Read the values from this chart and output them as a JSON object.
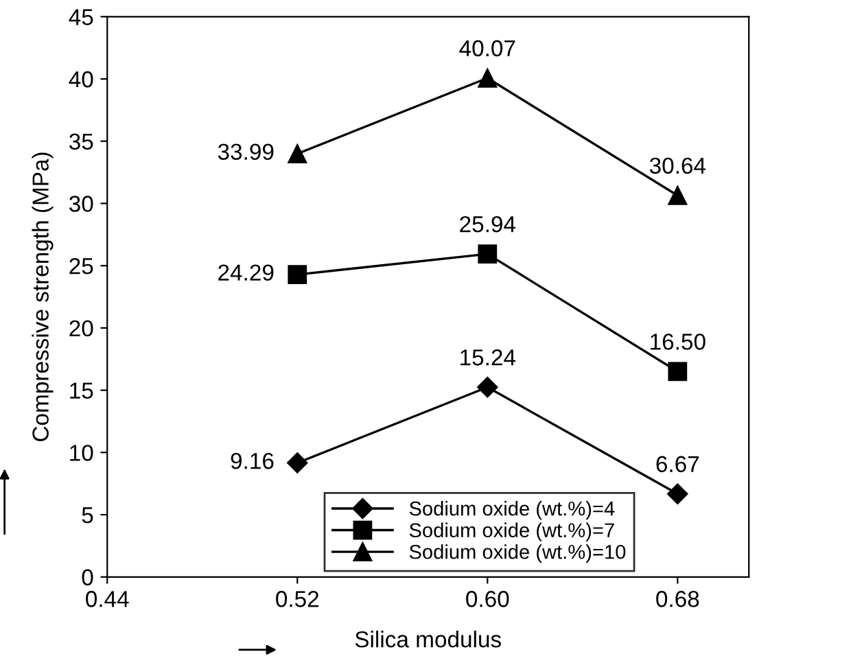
{
  "chart_data": {
    "type": "line",
    "xlabel": "Silica modulus",
    "ylabel": "Compressive strength (MPa)",
    "x": [
      0.52,
      0.6,
      0.68
    ],
    "series": [
      {
        "name": "Sodium oxide (wt.%)=4",
        "color": "#000000",
        "marker": "diamond",
        "values": [
          9.16,
          15.24,
          6.67
        ],
        "value_labels": [
          "9.16",
          "15.24",
          "6.67"
        ]
      },
      {
        "name": "Sodium oxide (wt.%)=7",
        "color": "#000000",
        "marker": "square",
        "values": [
          24.29,
          25.94,
          16.5
        ],
        "value_labels": [
          "24.29",
          "25.94",
          "16.50"
        ]
      },
      {
        "name": "Sodium oxide (wt.%)=10",
        "color": "#000000",
        "marker": "triangle",
        "values": [
          33.99,
          40.07,
          30.64
        ],
        "value_labels": [
          "33.99",
          "40.07",
          "30.64"
        ]
      }
    ],
    "xlim": [
      0.44,
      0.71
    ],
    "xticks": [
      {
        "value": 0.44,
        "label": "0.44"
      },
      {
        "value": 0.52,
        "label": "0.52"
      },
      {
        "value": 0.6,
        "label": "0.60"
      },
      {
        "value": 0.68,
        "label": "0.68"
      }
    ],
    "ylim": [
      0,
      45
    ],
    "yticks": [
      0,
      5,
      10,
      15,
      20,
      25,
      30,
      35,
      40,
      45
    ],
    "grid": false,
    "legend": "bottom",
    "line_style": "solid"
  }
}
